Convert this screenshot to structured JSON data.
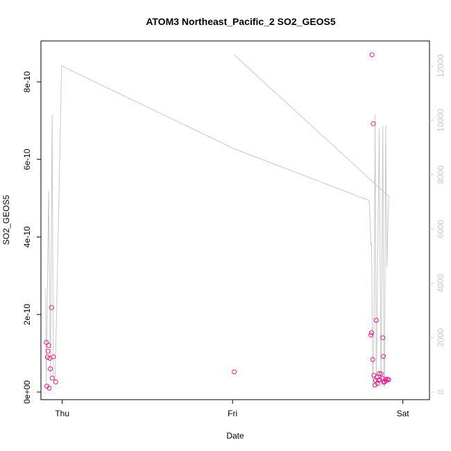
{
  "chart_data": {
    "type": "scatter",
    "title": "ATOM3 Northeast_Pacific_2 SO2_GEOS5",
    "xlabel": "Date",
    "ylabel": "SO2_GEOS5",
    "x_axis_type": "date",
    "xlim": [
      "2017-10-04T21:00",
      "2017-10-07T03:45"
    ],
    "x_ticks": [
      {
        "label": "Thu",
        "value": "2017-10-05T00:00"
      },
      {
        "label": "Fri",
        "value": "2017-10-06T00:00"
      },
      {
        "label": "Sat",
        "value": "2017-10-07T00:00"
      }
    ],
    "ylim": [
      0,
      9e-10
    ],
    "y_ticks": [
      {
        "label": "0e+00",
        "value": 0
      },
      {
        "label": "2e-10",
        "value": 2e-10
      },
      {
        "label": "4e-10",
        "value": 4e-10
      },
      {
        "label": "6e-10",
        "value": 6e-10
      },
      {
        "label": "8e-10",
        "value": 8e-10
      }
    ],
    "secondary_y": {
      "ylim": [
        0,
        12000
      ],
      "ticks": [
        0,
        2000,
        4000,
        6000,
        8000,
        10000,
        12000
      ],
      "color": "#c8c8c8"
    },
    "series": [
      {
        "type": "scatter",
        "color": "#e6198c",
        "marker": "open-circle",
        "points": [
          {
            "x": "2017-10-04T21:45",
            "y": 1.28e-10
          },
          {
            "x": "2017-10-04T21:50",
            "y": 1.5e-11
          },
          {
            "x": "2017-10-04T21:55",
            "y": 9e-11
          },
          {
            "x": "2017-10-04T22:00",
            "y": 1.05e-10
          },
          {
            "x": "2017-10-04T22:05",
            "y": 1.2e-10
          },
          {
            "x": "2017-10-04T22:10",
            "y": 1e-11
          },
          {
            "x": "2017-10-04T22:15",
            "y": 8.7e-11
          },
          {
            "x": "2017-10-04T22:20",
            "y": 6e-11
          },
          {
            "x": "2017-10-04T22:30",
            "y": 2.18e-10
          },
          {
            "x": "2017-10-04T22:35",
            "y": 3.6e-11
          },
          {
            "x": "2017-10-04T22:45",
            "y": 9.1e-11
          },
          {
            "x": "2017-10-04T23:05",
            "y": 2.6e-11
          },
          {
            "x": "2017-10-06T00:15",
            "y": 5.2e-11
          },
          {
            "x": "2017-10-06T19:30",
            "y": 1.47e-10
          },
          {
            "x": "2017-10-06T19:35",
            "y": 1.53e-10
          },
          {
            "x": "2017-10-06T19:40",
            "y": 8.7e-10
          },
          {
            "x": "2017-10-06T19:45",
            "y": 8.4e-11
          },
          {
            "x": "2017-10-06T19:50",
            "y": 6.92e-10
          },
          {
            "x": "2017-10-06T19:55",
            "y": 4.3e-11
          },
          {
            "x": "2017-10-06T20:05",
            "y": 1.8e-11
          },
          {
            "x": "2017-10-06T20:10",
            "y": 3e-11
          },
          {
            "x": "2017-10-06T20:15",
            "y": 1.85e-10
          },
          {
            "x": "2017-10-06T20:20",
            "y": 3.8e-11
          },
          {
            "x": "2017-10-06T20:25",
            "y": 2.2e-11
          },
          {
            "x": "2017-10-06T20:35",
            "y": 3e-11
          },
          {
            "x": "2017-10-06T20:40",
            "y": 4.8e-11
          },
          {
            "x": "2017-10-06T20:45",
            "y": 3.2e-11
          },
          {
            "x": "2017-10-06T20:55",
            "y": 4.7e-11
          },
          {
            "x": "2017-10-06T21:05",
            "y": 3.5e-11
          },
          {
            "x": "2017-10-06T21:10",
            "y": 1.4e-10
          },
          {
            "x": "2017-10-06T21:15",
            "y": 9.2e-11
          },
          {
            "x": "2017-10-06T21:20",
            "y": 2.5e-11
          },
          {
            "x": "2017-10-06T21:25",
            "y": 2.7e-11
          },
          {
            "x": "2017-10-06T21:35",
            "y": 3.3e-11
          },
          {
            "x": "2017-10-06T21:40",
            "y": 2.9e-11
          },
          {
            "x": "2017-10-06T21:50",
            "y": 3.3e-11
          },
          {
            "x": "2017-10-06T22:00",
            "y": 3.2e-11
          }
        ]
      },
      {
        "type": "line",
        "axis": "secondary",
        "color": "#c8c8c8",
        "points": [
          {
            "x": "2017-10-04T21:40",
            "y": 3800
          },
          {
            "x": "2017-10-04T21:45",
            "y": 200
          },
          {
            "x": "2017-10-04T22:05",
            "y": 7400
          },
          {
            "x": "2017-10-04T22:20",
            "y": 600
          },
          {
            "x": "2017-10-04T22:35",
            "y": 10200
          },
          {
            "x": "2017-10-04T22:45",
            "y": 600
          },
          {
            "x": "2017-10-04T23:00",
            "y": 400
          },
          {
            "x": "2017-10-04T23:55",
            "y": 12000
          },
          {
            "x": "2017-10-06T00:15",
            "y": 8950
          },
          {
            "x": "2017-10-06T19:15",
            "y": 7050
          },
          {
            "x": "2017-10-06T19:30",
            "y": 5400
          },
          {
            "x": "2017-10-06T19:35",
            "y": 5500
          },
          {
            "x": "2017-10-06T19:45",
            "y": 100
          },
          {
            "x": "2017-10-06T19:55",
            "y": 1900
          },
          {
            "x": "2017-10-06T20:05",
            "y": 10200
          },
          {
            "x": "2017-10-06T20:15",
            "y": 200
          },
          {
            "x": "2017-10-06T20:40",
            "y": 9700
          },
          {
            "x": "2017-10-06T20:55",
            "y": 200
          },
          {
            "x": "2017-10-06T21:10",
            "y": 9800
          },
          {
            "x": "2017-10-06T21:20",
            "y": 200
          },
          {
            "x": "2017-10-06T21:25",
            "y": 200
          },
          {
            "x": "2017-10-06T21:35",
            "y": 9800
          },
          {
            "x": "2017-10-06T21:45",
            "y": 4600
          },
          {
            "x": "2017-10-06T22:00",
            "y": 7200
          },
          {
            "x": "2017-10-05T00:05",
            "y": 0
          },
          {
            "x": "2017-10-06T00:15",
            "y": 0
          }
        ]
      },
      {
        "type": "line",
        "axis": "secondary",
        "color": "#c8c8c8",
        "points": [
          {
            "x": "2017-10-06T00:15",
            "y": 12400
          },
          {
            "x": "2017-10-06T22:00",
            "y": 7200
          }
        ]
      }
    ]
  }
}
